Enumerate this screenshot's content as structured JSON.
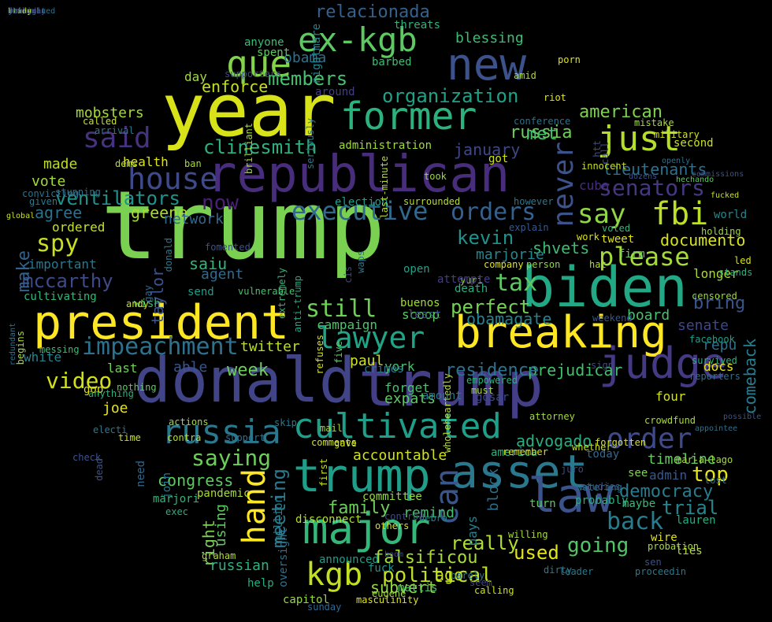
{
  "words": [
    {
      "text": "trump",
      "color": "#7ad151"
    },
    {
      "text": "donald",
      "color": "#414487"
    },
    {
      "text": "trump",
      "color": "#433e85"
    },
    {
      "text": "year",
      "color": "#d8e219"
    },
    {
      "text": "republican",
      "color": "#472d7b"
    },
    {
      "text": "biden",
      "color": "#22a884"
    },
    {
      "text": "president",
      "color": "#fde725"
    },
    {
      "text": "breaking",
      "color": "#fde725"
    },
    {
      "text": "trump",
      "color": "#1f9e89"
    },
    {
      "text": "asset",
      "color": "#2a788e"
    },
    {
      "text": "judge",
      "color": "#443983"
    },
    {
      "text": "russia",
      "color": "#2a788e"
    },
    {
      "text": "cultivated",
      "color": "#1f9e89"
    },
    {
      "text": "major",
      "color": "#35b779"
    },
    {
      "text": "law",
      "color": "#3b528b"
    },
    {
      "text": "former",
      "color": "#2db27d"
    },
    {
      "text": "new",
      "color": "#3b528b"
    },
    {
      "text": "house",
      "color": "#3e4a89"
    },
    {
      "text": "ex-kgb",
      "color": "#5ec962"
    },
    {
      "text": "que",
      "color": "#84d44b"
    },
    {
      "text": "said",
      "color": "#46327e"
    },
    {
      "text": "just",
      "color": "#b5de2b"
    },
    {
      "text": "fbi",
      "color": "#bddf26"
    },
    {
      "text": "say",
      "color": "#8fd744"
    },
    {
      "text": "order",
      "color": "#3e4a89"
    },
    {
      "text": "lawyer",
      "color": "#20a486"
    },
    {
      "text": "impeachment",
      "color": "#2c718e"
    },
    {
      "text": "executive",
      "color": "#31688e"
    },
    {
      "text": "orders",
      "color": "#34618d"
    },
    {
      "text": "kgb",
      "color": "#c2df23"
    },
    {
      "text": "hand",
      "color": "#fde725"
    },
    {
      "text": "can",
      "color": "#39568c"
    },
    {
      "text": "video",
      "color": "#d0e11c"
    },
    {
      "text": "saying",
      "color": "#6ccd5a"
    },
    {
      "text": "going",
      "color": "#52c569"
    },
    {
      "text": "back",
      "color": "#287c8e"
    },
    {
      "text": "never",
      "color": "#3b528b"
    },
    {
      "text": "senators",
      "color": "#453781"
    },
    {
      "text": "please",
      "color": "#a5db36"
    },
    {
      "text": "tax",
      "color": "#5ec962"
    },
    {
      "text": "kevin",
      "color": "#20928c"
    },
    {
      "text": "still",
      "color": "#6ece58"
    },
    {
      "text": "members",
      "color": "#46c06f"
    },
    {
      "text": "organization",
      "color": "#1fa188"
    },
    {
      "text": "clinesmith",
      "color": "#2db27d"
    },
    {
      "text": "ventilators",
      "color": "#21918c"
    },
    {
      "text": "spy",
      "color": "#c8e020"
    },
    {
      "text": "mccarthy",
      "color": "#3e4a89"
    },
    {
      "text": "now",
      "color": "#482173"
    },
    {
      "text": "meeting",
      "color": "#2a788e"
    },
    {
      "text": "political",
      "color": "#c0df25"
    },
    {
      "text": "falsificou",
      "color": "#a8db34"
    },
    {
      "text": "really",
      "color": "#b0dd2f"
    },
    {
      "text": "used",
      "color": "#e2e418"
    },
    {
      "text": "trial",
      "color": "#25858e"
    },
    {
      "text": "democracy",
      "color": "#287c8e"
    },
    {
      "text": "top",
      "color": "#e5e419"
    },
    {
      "text": "advogado",
      "color": "#29af7f"
    },
    {
      "text": "prejudicar",
      "color": "#44bf70"
    },
    {
      "text": "residence",
      "color": "#2c728e"
    },
    {
      "text": "obamagate",
      "color": "#26828e"
    },
    {
      "text": "perfect",
      "color": "#75d054"
    },
    {
      "text": "american",
      "color": "#7fd34e"
    },
    {
      "text": "russia",
      "color": "#6ece58"
    },
    {
      "text": "january",
      "color": "#3f4788"
    },
    {
      "text": "met",
      "color": "#48c16e"
    },
    {
      "text": "documento",
      "color": "#d8e219"
    },
    {
      "text": "lieutenants",
      "color": "#2d708e"
    },
    {
      "text": "week",
      "color": "#6ccd5a"
    },
    {
      "text": "paul",
      "color": "#d2e21b"
    },
    {
      "text": "twitter",
      "color": "#b8de29"
    },
    {
      "text": "agree",
      "color": "#2d708e"
    },
    {
      "text": "vote",
      "color": "#a0da39"
    },
    {
      "text": "made",
      "color": "#bade28"
    },
    {
      "text": "greene",
      "color": "#a8db34"
    },
    {
      "text": "network",
      "color": "#31688e"
    },
    {
      "text": "saiu",
      "color": "#31b57b"
    },
    {
      "text": "agent",
      "color": "#31688e"
    },
    {
      "text": "enforce",
      "color": "#c5e021"
    },
    {
      "text": "day",
      "color": "#a0da39"
    },
    {
      "text": "obama",
      "color": "#2c728e"
    },
    {
      "text": "relacionada",
      "color": "#34618d"
    },
    {
      "text": "blessing",
      "color": "#3fbc73"
    },
    {
      "text": "mobsters",
      "color": "#a5db36"
    },
    {
      "text": "health",
      "color": "#dde318"
    },
    {
      "text": "white",
      "color": "#26828e"
    },
    {
      "text": "last",
      "color": "#70cf57"
    },
    {
      "text": "able",
      "color": "#39558c"
    },
    {
      "text": "joe",
      "color": "#e7e419"
    },
    {
      "text": "gop",
      "color": "#dde318"
    },
    {
      "text": "congress",
      "color": "#5ec962"
    },
    {
      "text": "remind",
      "color": "#42be71"
    },
    {
      "text": "family",
      "color": "#6ccd5a"
    },
    {
      "text": "accountable",
      "color": "#d0e11c"
    },
    {
      "text": "ago",
      "color": "#c8e020"
    },
    {
      "text": "subvert",
      "color": "#90d743"
    },
    {
      "text": "board",
      "color": "#48c16e"
    },
    {
      "text": "bring",
      "color": "#39568c"
    },
    {
      "text": "senate",
      "color": "#3f4788"
    },
    {
      "text": "repu",
      "color": "#2c718e"
    },
    {
      "text": "docs",
      "color": "#e7e419"
    },
    {
      "text": "comeback",
      "color": "#287c8e"
    },
    {
      "text": "four",
      "color": "#d2e21b"
    },
    {
      "text": "timeline",
      "color": "#63cb5f"
    },
    {
      "text": "admin",
      "color": "#38598c"
    },
    {
      "text": "cuba",
      "color": "#472d7b"
    },
    {
      "text": "shvets",
      "color": "#3dbc74"
    },
    {
      "text": "marjorie",
      "color": "#23888e"
    },
    {
      "text": "firm",
      "color": "#6ccd5a"
    },
    {
      "text": "tweet",
      "color": "#dde318"
    },
    {
      "text": "longer",
      "color": "#a8db34"
    },
    {
      "text": "world",
      "color": "#23888e"
    },
    {
      "text": "expats",
      "color": "#5ec962"
    },
    {
      "text": "york",
      "color": "#4ac16d"
    },
    {
      "text": "forget",
      "color": "#4ac16d"
    },
    {
      "text": "campaign",
      "color": "#4ec36b"
    },
    {
      "text": "scoop",
      "color": "#5ec962"
    },
    {
      "text": "right",
      "color": "#7ad151"
    },
    {
      "text": "using",
      "color": "#5ec962"
    },
    {
      "text": "russian",
      "color": "#2db27d"
    },
    {
      "text": "help",
      "color": "#25ac82"
    },
    {
      "text": "capitol",
      "color": "#97d83f"
    },
    {
      "text": "wire",
      "color": "#dde318"
    },
    {
      "text": "lies",
      "color": "#b0dd2f"
    },
    {
      "text": "lauren",
      "color": "#25ac82"
    },
    {
      "text": "maybe",
      "color": "#3bbb75"
    },
    {
      "text": "probably",
      "color": "#28ae80"
    },
    {
      "text": "turn",
      "color": "#5ec962"
    },
    {
      "text": "america",
      "color": "#2ab07f"
    },
    {
      "text": "see",
      "color": "#7fd34e"
    },
    {
      "text": "today",
      "color": "#31688e"
    },
    {
      "text": "taylor",
      "color": "#3b528b"
    },
    {
      "text": "important",
      "color": "#2a788e"
    },
    {
      "text": "cultivating",
      "color": "#34b679"
    },
    {
      "text": "ordered",
      "color": "#c5e021"
    },
    {
      "text": "make",
      "color": "#33638d"
    },
    {
      "text": "send",
      "color": "#1f9e89"
    },
    {
      "text": "wish",
      "color": "#3fbc73"
    },
    {
      "text": "gosar",
      "color": "#3e4989"
    },
    {
      "text": "pays",
      "color": "#277f8e"
    },
    {
      "text": "block",
      "color": "#2d708e"
    },
    {
      "text": "announced",
      "color": "#1f9e89"
    },
    {
      "text": "fuck",
      "color": "#21918c"
    },
    {
      "text": "mattis",
      "color": "#4ac16d"
    },
    {
      "text": "need",
      "color": "#31688e"
    },
    {
      "text": "join",
      "color": "#2a788e"
    },
    {
      "text": "oversight",
      "color": "#2c728e"
    },
    {
      "text": "disconnect",
      "color": "#b5de2b"
    },
    {
      "text": "committee",
      "color": "#97d83f"
    },
    {
      "text": "million",
      "color": "#277f8e"
    },
    {
      "text": "pandemic",
      "color": "#a5db36"
    },
    {
      "text": "marjori",
      "color": "#31b57b"
    },
    {
      "text": "exec",
      "color": "#29af7f"
    },
    {
      "text": "threats",
      "color": "#2db27d"
    },
    {
      "text": "spent",
      "color": "#5ec962"
    },
    {
      "text": "anyone",
      "color": "#3dbc74"
    },
    {
      "text": "nightmare",
      "color": "#26828e"
    },
    {
      "text": "barbed",
      "color": "#3dbc74"
    },
    {
      "text": "around",
      "color": "#433e85"
    },
    {
      "text": "administration",
      "color": "#a0da39"
    },
    {
      "text": "took",
      "color": "#9bd93c"
    },
    {
      "text": "election",
      "color": "#1f9e89"
    },
    {
      "text": "surrounded",
      "color": "#b5de2b"
    },
    {
      "text": "however",
      "color": "#2a788e"
    },
    {
      "text": "explain",
      "color": "#38598c"
    },
    {
      "text": "person",
      "color": "#90d743"
    },
    {
      "text": "company",
      "color": "#dde318"
    },
    {
      "text": "yuri",
      "color": "#a5db36"
    },
    {
      "text": "attempte",
      "color": "#433e85"
    },
    {
      "text": "death",
      "color": "#28ae80"
    },
    {
      "text": "buenos",
      "color": "#a0da39"
    },
    {
      "text": "least",
      "color": "#3b528b"
    },
    {
      "text": "open",
      "color": "#1fa188"
    },
    {
      "text": "got",
      "color": "#d0e11c"
    },
    {
      "text": "conference",
      "color": "#2c728e"
    },
    {
      "text": "riot",
      "color": "#e2e418"
    },
    {
      "text": "amid",
      "color": "#a8db34"
    },
    {
      "text": "porn",
      "color": "#dde318"
    },
    {
      "text": "military",
      "color": "#d2e21b"
    },
    {
      "text": "second",
      "color": "#c8e020"
    },
    {
      "text": "mistake",
      "color": "#a5db36"
    },
    {
      "text": "hat",
      "color": "#b5de2b"
    },
    {
      "text": "voted",
      "color": "#31b57b"
    },
    {
      "text": "work",
      "color": "#d8e219"
    },
    {
      "text": "holding",
      "color": "#9bd93c"
    },
    {
      "text": "fucked",
      "color": "#c8e020"
    },
    {
      "text": "led",
      "color": "#d8e219"
    },
    {
      "text": "stands",
      "color": "#2ab07f"
    },
    {
      "text": "censored",
      "color": "#9bd93c"
    },
    {
      "text": "facebook",
      "color": "#1f9e89"
    },
    {
      "text": "reporters",
      "color": "#2d708e"
    },
    {
      "text": "survived",
      "color": "#2db27d"
    },
    {
      "text": "weekend",
      "color": "#39558c"
    },
    {
      "text": "mar-a-lago",
      "color": "#a0da39"
    },
    {
      "text": "lost",
      "color": "#2c728e"
    },
    {
      "text": "probation",
      "color": "#a8db34"
    },
    {
      "text": "sen",
      "color": "#3b528b"
    },
    {
      "text": "leader",
      "color": "#2a788e"
    },
    {
      "text": "willing",
      "color": "#a5db36"
    },
    {
      "text": "seem",
      "color": "#414487"
    },
    {
      "text": "calling",
      "color": "#cde11d"
    },
    {
      "text": "barely",
      "color": "#2a788e"
    },
    {
      "text": "sunday",
      "color": "#31688e"
    },
    {
      "text": "masculinity",
      "color": "#dde318"
    },
    {
      "text": "eugene",
      "color": "#a0da39"
    },
    {
      "text": "gay",
      "color": "#31688e"
    },
    {
      "text": "anti-trump",
      "color": "#22a884"
    },
    {
      "text": "extremely",
      "color": "#34b679"
    },
    {
      "text": "vulnerable",
      "color": "#4ac16d"
    },
    {
      "text": "andy",
      "color": "#c8e020"
    },
    {
      "text": "seriously",
      "color": "#2a788e"
    },
    {
      "text": "supporters",
      "color": "#3e4a89"
    },
    {
      "text": "called",
      "color": "#c5e021"
    },
    {
      "text": "arrival",
      "color": "#2a788e"
    },
    {
      "text": "dems",
      "color": "#b5de2b"
    },
    {
      "text": "ban",
      "color": "#a8db34"
    },
    {
      "text": "anything",
      "color": "#2db27d"
    },
    {
      "text": "electi",
      "color": "#2a788e"
    },
    {
      "text": "time",
      "color": "#c8e020"
    },
    {
      "text": "check",
      "color": "#3b528b"
    },
    {
      "text": "dead",
      "color": "#3b528b"
    },
    {
      "text": "messing",
      "color": "#3fbc73"
    },
    {
      "text": "begins",
      "color": "#a5db36"
    },
    {
      "text": "redundant",
      "color": "#2c728e"
    },
    {
      "text": "nothing",
      "color": "#5ec962"
    },
    {
      "text": "gave",
      "color": "#c8e020"
    },
    {
      "text": "comments",
      "color": "#d2e21b"
    },
    {
      "text": "remember",
      "color": "#dde318"
    },
    {
      "text": "whether",
      "color": "#c5e021"
    },
    {
      "text": "forgotten",
      "color": "#d8e219"
    },
    {
      "text": "crowdfund",
      "color": "#a8db34"
    },
    {
      "text": "appointee",
      "color": "#2c728e"
    },
    {
      "text": "possible",
      "color": "#3b528b"
    },
    {
      "text": "openly",
      "color": "#2c728e"
    },
    {
      "text": "commissions",
      "color": "#3b528b"
    },
    {
      "text": "hechando",
      "color": "#5ec962"
    },
    {
      "text": "dozens",
      "color": "#3b528b"
    },
    {
      "text": "last-minute",
      "color": "#b5de2b"
    },
    {
      "text": "others",
      "color": "#d2e21b"
    },
    {
      "text": "debra",
      "color": "#2a788e"
    },
    {
      "text": "first",
      "color": "#c8e020"
    },
    {
      "text": "watering",
      "color": "#2c728e"
    },
    {
      "text": "studies",
      "color": "#3b528b"
    },
    {
      "text": "juro",
      "color": "#3e4a89"
    },
    {
      "text": "crimes",
      "color": "#2a788e"
    },
    {
      "text": "wholeheartedly",
      "color": "#b5de2b"
    },
    {
      "text": "empowered",
      "color": "#2db27d"
    },
    {
      "text": "must",
      "color": "#a5db36"
    },
    {
      "text": "attorney",
      "color": "#a0da39"
    },
    {
      "text": "convicting",
      "color": "#2c728e"
    },
    {
      "text": "stunning",
      "color": "#2c728e"
    },
    {
      "text": "given",
      "color": "#2a788e"
    },
    {
      "text": "global",
      "color": "#c8e020"
    },
    {
      "text": "actions",
      "color": "#a0da39"
    },
    {
      "text": "contra",
      "color": "#b5de2b"
    },
    {
      "text": "support",
      "color": "#2c728e"
    },
    {
      "text": "amount",
      "color": "#2a788e"
    },
    {
      "text": "sign",
      "color": "#3e4a89"
    },
    {
      "text": "htt",
      "color": "#3e4a89"
    },
    {
      "text": "call",
      "color": "#3e4a89"
    },
    {
      "text": "innocent",
      "color": "#c8e020"
    },
    {
      "text": "brilliant",
      "color": "#a0da39"
    },
    {
      "text": "refuses",
      "color": "#d2e21b"
    },
    {
      "text": "graham",
      "color": "#b5de2b"
    },
    {
      "text": "five",
      "color": "#5ec962"
    },
    {
      "text": "cis",
      "color": "#414487"
    },
    {
      "text": "waps",
      "color": "#2c728e"
    },
    {
      "text": "control",
      "color": "#3e4a89"
    },
    {
      "text": "dirty",
      "color": "#2a788e"
    },
    {
      "text": "boom",
      "color": "#3e4a89"
    },
    {
      "text": "donald",
      "color": "#2a788e"
    },
    {
      "text": "fomented",
      "color": "#3b528b"
    },
    {
      "text": "skip",
      "color": "#2a788e"
    },
    {
      "text": "mail",
      "color": "#a0da39"
    },
    {
      "text": "proceedin",
      "color": "#2a788e"
    },
    {
      "text": "determined",
      "color": "#2c728e"
    },
    {
      "text": "cowardly",
      "color": "#3e4a89"
    },
    {
      "text": "thing",
      "color": "#3b528b"
    },
    {
      "text": "stars",
      "color": "#3e4a89"
    },
    {
      "text": "ready",
      "color": "#d2e21b"
    },
    {
      "text": "straight",
      "color": "#2c728e"
    },
    {
      "text": "better",
      "color": "#414487"
    },
    {
      "text": "jan",
      "color": "#31688e"
    },
    {
      "text": "brian",
      "color": "#a8db34"
    },
    {
      "text": "decline",
      "color": "#3e4a89"
    }
  ]
}
